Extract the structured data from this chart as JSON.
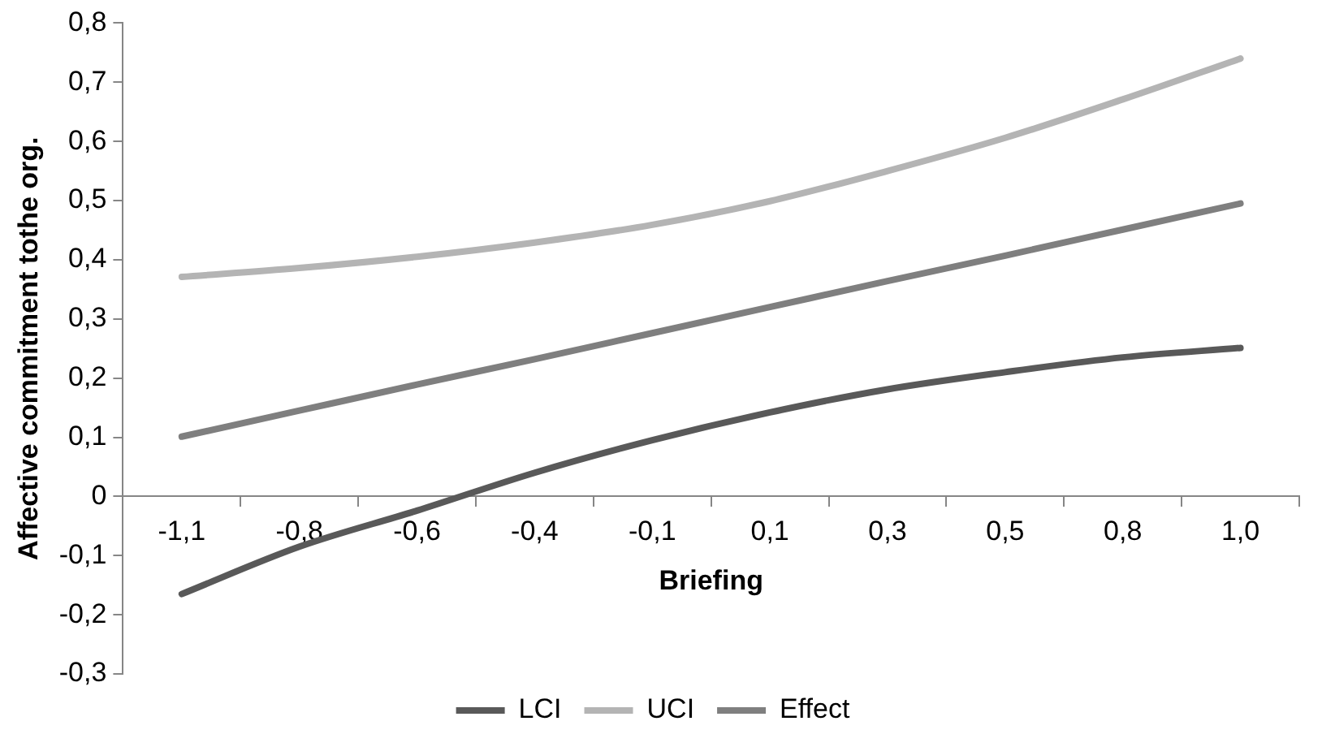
{
  "chart_data": {
    "type": "line",
    "xlabel": "Briefing",
    "ylabel": "Affective commitment tothe org.",
    "categories": [
      "-1,1",
      "-0,8",
      "-0,6",
      "-0,4",
      "-0,1",
      "0,1",
      "0,3",
      "0,5",
      "0,8",
      "1,0"
    ],
    "series": [
      {
        "name": "LCI",
        "color": "#595959",
        "values": [
          -0.165,
          -0.085,
          -0.024,
          0.04,
          0.095,
          0.142,
          0.181,
          0.21,
          0.235,
          0.251
        ]
      },
      {
        "name": "UCI",
        "color": "#b4b4b4",
        "values": [
          0.371,
          0.386,
          0.405,
          0.429,
          0.459,
          0.499,
          0.55,
          0.606,
          0.671,
          0.74
        ]
      },
      {
        "name": "Effect",
        "color": "#7f7f7f",
        "values": [
          0.101,
          0.145,
          0.189,
          0.232,
          0.276,
          0.32,
          0.364,
          0.407,
          0.451,
          0.495
        ]
      }
    ],
    "ylim": [
      -0.3,
      0.8
    ],
    "yticks": [
      {
        "value": -0.3,
        "label": "-0,3"
      },
      {
        "value": -0.2,
        "label": "-0,2"
      },
      {
        "value": -0.1,
        "label": "-0,1"
      },
      {
        "value": 0,
        "label": "0"
      },
      {
        "value": 0.1,
        "label": "0,1"
      },
      {
        "value": 0.2,
        "label": "0,2"
      },
      {
        "value": 0.3,
        "label": "0,3"
      },
      {
        "value": 0.4,
        "label": "0,4"
      },
      {
        "value": 0.5,
        "label": "0,5"
      },
      {
        "value": 0.6,
        "label": "0,6"
      },
      {
        "value": 0.7,
        "label": "0,7"
      },
      {
        "value": 0.8,
        "label": "0,8"
      }
    ],
    "grid": false,
    "legend": "bottom",
    "marker": "none",
    "line_style": "solid"
  }
}
